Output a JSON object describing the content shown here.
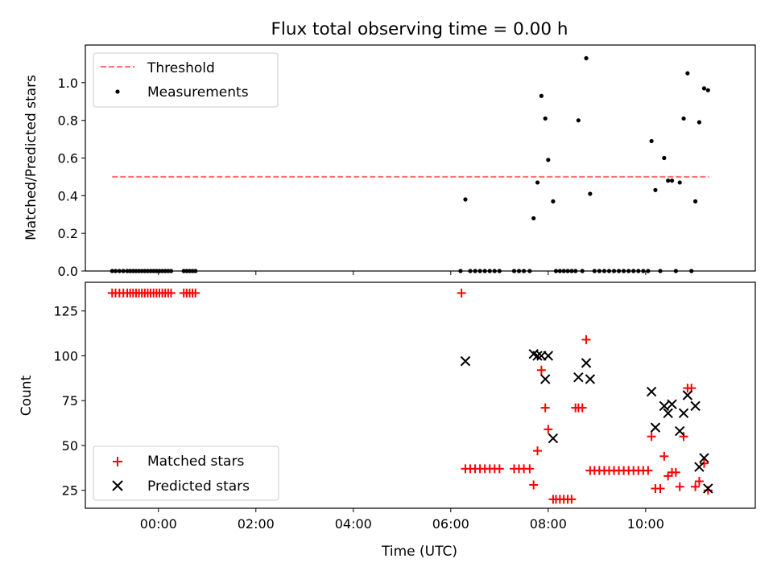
{
  "figure": {
    "title": "Flux total observing time = 0.00 h",
    "xlabel": "Time (UTC)"
  },
  "chart_data": [
    {
      "type": "scatter",
      "title": "Flux total observing time = 0.00 h",
      "ylabel": "Matched/Predicted stars",
      "xlabel": "",
      "x_unit": "hours UTC",
      "xlim": [
        -1.5,
        12.25
      ],
      "ylim": [
        0,
        1.2
      ],
      "yticks": [
        0.0,
        0.2,
        0.4,
        0.6,
        0.8,
        1.0
      ],
      "ytick_labels": [
        "0.0",
        "0.2",
        "0.4",
        "0.6",
        "0.8",
        "1.0"
      ],
      "legend_position": "upper left",
      "grid": false,
      "threshold": {
        "name": "Threshold",
        "y": 0.5,
        "x_range": [
          -0.95,
          11.3
        ],
        "color": "#ff7070"
      },
      "series": [
        {
          "name": "Measurements",
          "marker": "dot",
          "color": "#000000",
          "points": [
            [
              -0.95,
              0
            ],
            [
              -0.88,
              0
            ],
            [
              -0.8,
              0
            ],
            [
              -0.72,
              0
            ],
            [
              -0.64,
              0
            ],
            [
              -0.58,
              0
            ],
            [
              -0.52,
              0
            ],
            [
              -0.46,
              0
            ],
            [
              -0.4,
              0
            ],
            [
              -0.34,
              0
            ],
            [
              -0.28,
              0
            ],
            [
              -0.22,
              0
            ],
            [
              -0.16,
              0
            ],
            [
              -0.1,
              0
            ],
            [
              -0.04,
              0
            ],
            [
              0.02,
              0
            ],
            [
              0.08,
              0
            ],
            [
              0.14,
              0
            ],
            [
              0.2,
              0
            ],
            [
              0.26,
              0
            ],
            [
              0.52,
              0
            ],
            [
              0.58,
              0
            ],
            [
              0.64,
              0
            ],
            [
              0.7,
              0
            ],
            [
              0.76,
              0
            ],
            [
              6.2,
              0
            ],
            [
              6.3,
              0.38
            ],
            [
              6.4,
              0
            ],
            [
              6.5,
              0
            ],
            [
              6.6,
              0
            ],
            [
              6.7,
              0
            ],
            [
              6.8,
              0
            ],
            [
              6.9,
              0
            ],
            [
              7.0,
              0
            ],
            [
              7.3,
              0
            ],
            [
              7.4,
              0
            ],
            [
              7.5,
              0
            ],
            [
              7.62,
              0
            ],
            [
              7.7,
              0.28
            ],
            [
              7.78,
              0.47
            ],
            [
              7.86,
              0.93
            ],
            [
              7.94,
              0.81
            ],
            [
              8.0,
              0.59
            ],
            [
              8.1,
              0.37
            ],
            [
              8.16,
              0
            ],
            [
              8.24,
              0
            ],
            [
              8.32,
              0
            ],
            [
              8.4,
              0
            ],
            [
              8.48,
              0
            ],
            [
              8.56,
              0
            ],
            [
              8.62,
              0.8
            ],
            [
              8.7,
              0
            ],
            [
              8.78,
              1.13
            ],
            [
              8.86,
              0.41
            ],
            [
              8.95,
              0
            ],
            [
              9.05,
              0
            ],
            [
              9.15,
              0
            ],
            [
              9.25,
              0
            ],
            [
              9.35,
              0
            ],
            [
              9.45,
              0
            ],
            [
              9.55,
              0
            ],
            [
              9.65,
              0
            ],
            [
              9.75,
              0
            ],
            [
              9.85,
              0
            ],
            [
              9.95,
              0
            ],
            [
              10.05,
              0
            ],
            [
              10.12,
              0.69
            ],
            [
              10.2,
              0.43
            ],
            [
              10.3,
              0
            ],
            [
              10.38,
              0.6
            ],
            [
              10.46,
              0.48
            ],
            [
              10.54,
              0.48
            ],
            [
              10.62,
              0
            ],
            [
              10.7,
              0.47
            ],
            [
              10.78,
              0.81
            ],
            [
              10.86,
              1.05
            ],
            [
              10.94,
              0
            ],
            [
              11.02,
              0.37
            ],
            [
              11.1,
              0.79
            ],
            [
              11.2,
              0.97
            ],
            [
              11.28,
              0.96
            ]
          ]
        }
      ]
    },
    {
      "type": "scatter",
      "ylabel": "Count",
      "xlabel": "Time (UTC)",
      "x_unit": "hours UTC",
      "xlim": [
        -1.5,
        12.25
      ],
      "ylim": [
        15,
        141
      ],
      "yticks": [
        25,
        50,
        75,
        100,
        125
      ],
      "ytick_labels": [
        "25",
        "50",
        "75",
        "100",
        "125"
      ],
      "xticks": [
        0,
        2,
        4,
        6,
        8,
        10
      ],
      "xtick_labels": [
        "00:00",
        "02:00",
        "04:00",
        "06:00",
        "08:00",
        "10:00"
      ],
      "legend_position": "lower left",
      "grid": false,
      "series": [
        {
          "name": "Matched stars",
          "marker": "plus",
          "color": "#ff0000",
          "points": [
            [
              -0.95,
              135
            ],
            [
              -0.88,
              135
            ],
            [
              -0.8,
              135
            ],
            [
              -0.72,
              135
            ],
            [
              -0.64,
              135
            ],
            [
              -0.58,
              135
            ],
            [
              -0.52,
              135
            ],
            [
              -0.46,
              135
            ],
            [
              -0.4,
              135
            ],
            [
              -0.34,
              135
            ],
            [
              -0.28,
              135
            ],
            [
              -0.22,
              135
            ],
            [
              -0.16,
              135
            ],
            [
              -0.1,
              135
            ],
            [
              -0.04,
              135
            ],
            [
              0.02,
              135
            ],
            [
              0.08,
              135
            ],
            [
              0.14,
              135
            ],
            [
              0.2,
              135
            ],
            [
              0.26,
              135
            ],
            [
              0.52,
              135
            ],
            [
              0.58,
              135
            ],
            [
              0.64,
              135
            ],
            [
              0.7,
              135
            ],
            [
              0.76,
              135
            ],
            [
              6.22,
              135
            ],
            [
              6.3,
              37
            ],
            [
              6.4,
              37
            ],
            [
              6.5,
              37
            ],
            [
              6.6,
              37
            ],
            [
              6.7,
              37
            ],
            [
              6.8,
              37
            ],
            [
              6.9,
              37
            ],
            [
              7.0,
              37
            ],
            [
              7.3,
              37
            ],
            [
              7.4,
              37
            ],
            [
              7.5,
              37
            ],
            [
              7.62,
              37
            ],
            [
              7.7,
              28
            ],
            [
              7.78,
              47
            ],
            [
              7.86,
              92
            ],
            [
              7.94,
              71
            ],
            [
              8.0,
              59
            ],
            [
              8.1,
              20
            ],
            [
              8.16,
              20
            ],
            [
              8.24,
              20
            ],
            [
              8.32,
              20
            ],
            [
              8.4,
              20
            ],
            [
              8.48,
              20
            ],
            [
              8.56,
              71
            ],
            [
              8.62,
              71
            ],
            [
              8.7,
              71
            ],
            [
              8.78,
              109
            ],
            [
              8.86,
              36
            ],
            [
              8.95,
              36
            ],
            [
              9.05,
              36
            ],
            [
              9.15,
              36
            ],
            [
              9.25,
              36
            ],
            [
              9.35,
              36
            ],
            [
              9.45,
              36
            ],
            [
              9.55,
              36
            ],
            [
              9.65,
              36
            ],
            [
              9.75,
              36
            ],
            [
              9.85,
              36
            ],
            [
              9.95,
              36
            ],
            [
              10.05,
              36
            ],
            [
              10.12,
              55
            ],
            [
              10.2,
              26
            ],
            [
              10.3,
              26
            ],
            [
              10.38,
              44
            ],
            [
              10.46,
              33
            ],
            [
              10.54,
              35
            ],
            [
              10.62,
              35
            ],
            [
              10.7,
              27
            ],
            [
              10.78,
              55
            ],
            [
              10.86,
              82
            ],
            [
              10.94,
              82
            ],
            [
              11.02,
              27
            ],
            [
              11.1,
              30
            ],
            [
              11.2,
              40
            ],
            [
              11.28,
              25
            ]
          ]
        },
        {
          "name": "Predicted stars",
          "marker": "x",
          "color": "#000000",
          "points": [
            [
              6.3,
              97
            ],
            [
              7.7,
              101
            ],
            [
              7.78,
              100
            ],
            [
              7.86,
              100
            ],
            [
              7.94,
              87
            ],
            [
              8.0,
              100
            ],
            [
              8.1,
              54
            ],
            [
              8.62,
              88
            ],
            [
              8.78,
              96
            ],
            [
              8.86,
              87
            ],
            [
              10.12,
              80
            ],
            [
              10.2,
              60
            ],
            [
              10.38,
              72
            ],
            [
              10.46,
              68
            ],
            [
              10.54,
              73
            ],
            [
              10.7,
              58
            ],
            [
              10.78,
              68
            ],
            [
              10.86,
              78
            ],
            [
              11.02,
              72
            ],
            [
              11.1,
              38
            ],
            [
              11.2,
              43
            ],
            [
              11.28,
              26
            ]
          ]
        }
      ]
    }
  ]
}
